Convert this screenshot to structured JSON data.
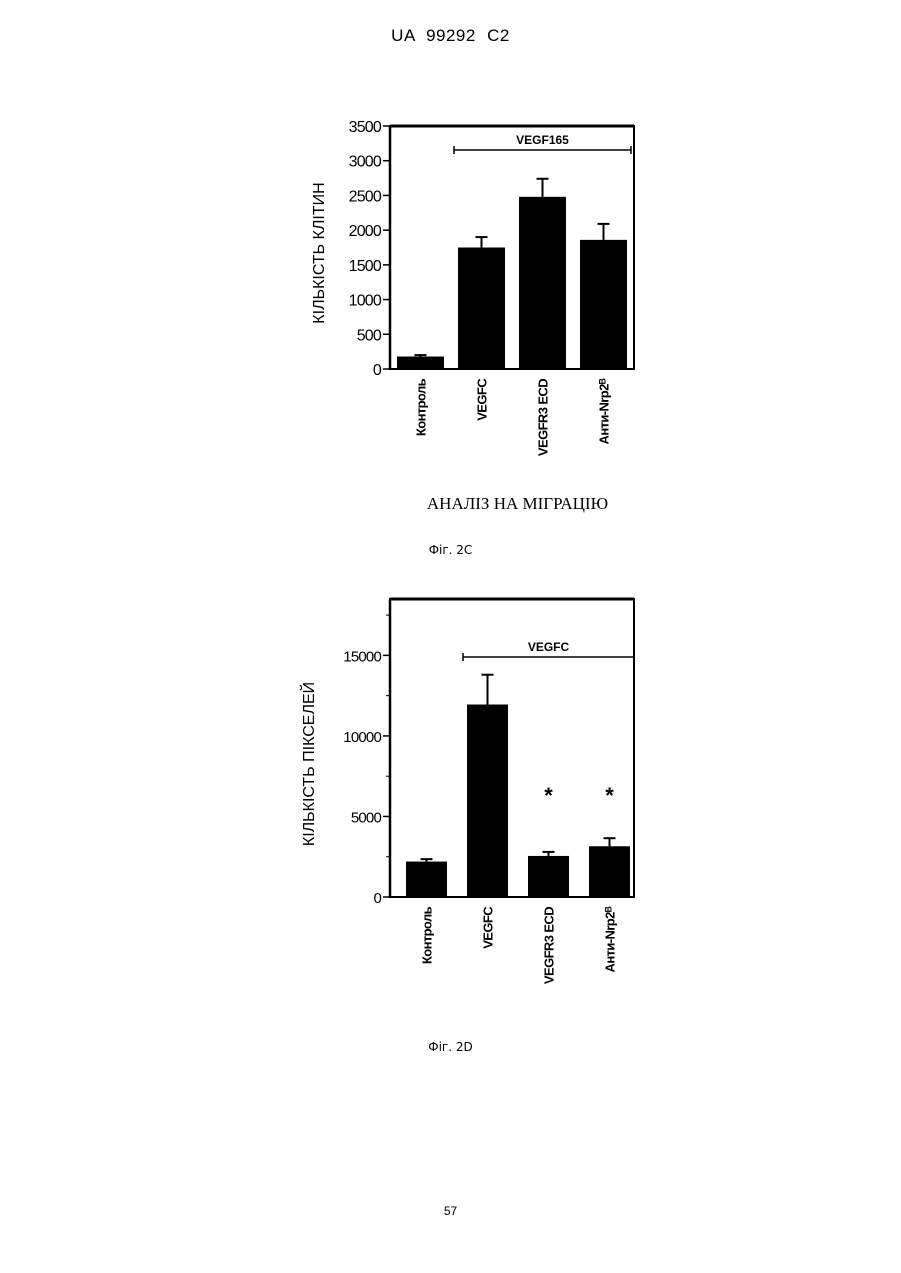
{
  "page": {
    "header": "UA 99292 C2",
    "page_number": "57"
  },
  "chart_data": [
    {
      "type": "bar",
      "figure_label": "Фіг. 2С",
      "title": "АНАЛІЗ НА МІГРАЦІЮ",
      "ylabel": "КІЛЬКІСТЬ КЛІТИН",
      "xlabel": "",
      "categories": [
        "Контроль",
        "VEGFC",
        "VEGFR3 ECD",
        "Анти-Nrp2ᴮ"
      ],
      "values": [
        180,
        1750,
        2480,
        1860
      ],
      "errors": [
        20,
        150,
        260,
        230
      ],
      "ylim": [
        0,
        3500
      ],
      "yticks": [
        0,
        500,
        1000,
        1500,
        2000,
        2500,
        3000,
        3500
      ],
      "ytick_labels": [
        "0",
        "500",
        "1000",
        "1500",
        "2000",
        "2500",
        "3000",
        "3500"
      ],
      "bracket": {
        "label": "VEGF165",
        "from_index": 1,
        "to_index": 3
      },
      "markers": [
        "",
        "",
        "",
        ""
      ],
      "grid": false
    },
    {
      "type": "bar",
      "figure_label": "Фіг. 2D",
      "title": "",
      "ylabel": "КІЛЬКІСТЬ ПІКСЕЛЕЙ",
      "xlabel": "",
      "categories": [
        "Контроль",
        "VEGFC",
        "VEGFR3 ECD",
        "Анти-Nrp2ᴮ"
      ],
      "values": [
        2200,
        11950,
        2550,
        3150
      ],
      "errors": [
        150,
        1850,
        250,
        500
      ],
      "ylim": [
        0,
        18500
      ],
      "yticks": [
        0,
        5000,
        10000,
        15000
      ],
      "ytick_labels": [
        "0",
        "5000",
        "10000",
        "15000"
      ],
      "minor_yticks": [
        2500,
        7500,
        12500,
        17500
      ],
      "bracket": {
        "label": "VEGFC",
        "from_index": 1,
        "to_index": 3
      },
      "markers": [
        "",
        "",
        "*",
        "*"
      ],
      "grid": false
    }
  ]
}
